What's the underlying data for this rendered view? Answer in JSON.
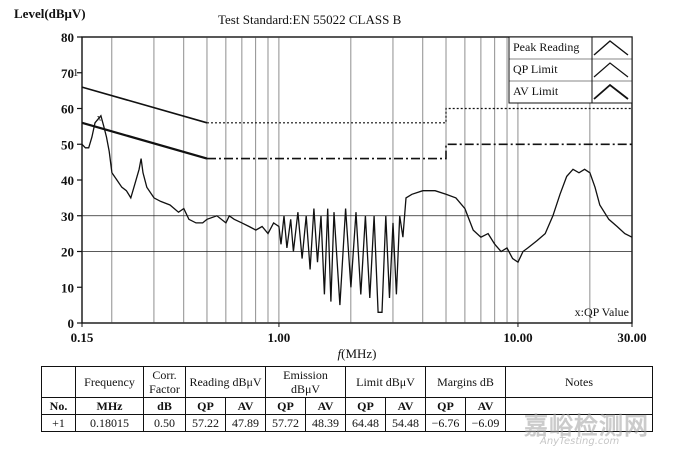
{
  "chart_data": {
    "type": "line",
    "title": "Test Standard:EN 55022 CLASS B",
    "ylabel": "Level(dBμV)",
    "xlabel_prefix": "f",
    "xlabel_unit": "(MHz)",
    "x_scale": "log",
    "xlim": [
      0.15,
      30
    ],
    "ylim": [
      0,
      80
    ],
    "x_ticks": [
      {
        "value": 0.15,
        "label": "0.15"
      },
      {
        "value": 1,
        "label": "1.00"
      },
      {
        "value": 10,
        "label": "10.00"
      },
      {
        "value": 30,
        "label": "30.00"
      }
    ],
    "y_ticks": [
      0,
      10,
      20,
      30,
      40,
      50,
      60,
      70,
      80
    ],
    "grid": true,
    "legend_position": "top-right",
    "annotation": "x:QP Value",
    "marker_label": "1",
    "marker_point": {
      "x": 0.18,
      "y": 57.7
    },
    "series": [
      {
        "name": "Peak Reading",
        "points": [
          [
            0.15,
            50
          ],
          [
            0.155,
            49
          ],
          [
            0.16,
            49
          ],
          [
            0.165,
            52
          ],
          [
            0.17,
            56
          ],
          [
            0.175,
            57
          ],
          [
            0.18,
            58
          ],
          [
            0.185,
            55
          ],
          [
            0.19,
            52
          ],
          [
            0.195,
            48
          ],
          [
            0.2,
            42
          ],
          [
            0.21,
            40
          ],
          [
            0.22,
            38
          ],
          [
            0.23,
            37
          ],
          [
            0.24,
            35
          ],
          [
            0.25,
            39
          ],
          [
            0.26,
            43
          ],
          [
            0.265,
            46
          ],
          [
            0.27,
            42
          ],
          [
            0.28,
            38
          ],
          [
            0.3,
            35
          ],
          [
            0.32,
            34
          ],
          [
            0.35,
            33
          ],
          [
            0.38,
            31
          ],
          [
            0.4,
            32
          ],
          [
            0.42,
            29
          ],
          [
            0.45,
            28
          ],
          [
            0.48,
            28
          ],
          [
            0.5,
            29
          ],
          [
            0.55,
            30
          ],
          [
            0.6,
            28
          ],
          [
            0.62,
            30
          ],
          [
            0.65,
            29
          ],
          [
            0.7,
            28
          ],
          [
            0.75,
            27
          ],
          [
            0.8,
            26
          ],
          [
            0.85,
            27
          ],
          [
            0.9,
            25
          ],
          [
            0.95,
            28
          ],
          [
            1.0,
            27
          ],
          [
            1.02,
            22
          ],
          [
            1.05,
            30
          ],
          [
            1.08,
            21
          ],
          [
            1.12,
            29
          ],
          [
            1.15,
            20
          ],
          [
            1.2,
            31
          ],
          [
            1.25,
            18
          ],
          [
            1.3,
            30
          ],
          [
            1.35,
            15
          ],
          [
            1.4,
            32
          ],
          [
            1.45,
            17
          ],
          [
            1.5,
            30
          ],
          [
            1.55,
            8
          ],
          [
            1.6,
            32
          ],
          [
            1.65,
            6
          ],
          [
            1.7,
            31
          ],
          [
            1.8,
            5
          ],
          [
            1.9,
            32
          ],
          [
            2.0,
            10
          ],
          [
            2.1,
            31
          ],
          [
            2.2,
            8
          ],
          [
            2.3,
            30
          ],
          [
            2.4,
            7
          ],
          [
            2.5,
            30
          ],
          [
            2.6,
            3
          ],
          [
            2.7,
            3
          ],
          [
            2.8,
            30
          ],
          [
            2.9,
            7
          ],
          [
            3.0,
            28
          ],
          [
            3.1,
            8
          ],
          [
            3.2,
            30
          ],
          [
            3.3,
            24
          ],
          [
            3.4,
            35
          ],
          [
            3.6,
            36
          ],
          [
            4.0,
            37
          ],
          [
            4.5,
            37
          ],
          [
            5.0,
            36
          ],
          [
            5.5,
            35
          ],
          [
            6.0,
            32
          ],
          [
            6.5,
            26
          ],
          [
            7.0,
            24
          ],
          [
            7.5,
            25
          ],
          [
            8.0,
            22
          ],
          [
            8.5,
            20
          ],
          [
            9.0,
            21
          ],
          [
            9.5,
            18
          ],
          [
            10.0,
            17
          ],
          [
            10.5,
            20
          ],
          [
            11.0,
            21
          ],
          [
            12.0,
            23
          ],
          [
            13.0,
            25
          ],
          [
            14.0,
            30
          ],
          [
            15.0,
            36
          ],
          [
            16.0,
            41
          ],
          [
            17.0,
            43
          ],
          [
            18.0,
            42
          ],
          [
            19.0,
            43
          ],
          [
            20.0,
            42
          ],
          [
            21.0,
            38
          ],
          [
            22.0,
            33
          ],
          [
            24.0,
            29
          ],
          [
            26.0,
            27
          ],
          [
            28.0,
            25
          ],
          [
            30.0,
            24
          ]
        ]
      },
      {
        "name": "QP Limit",
        "points": [
          [
            0.15,
            66
          ],
          [
            0.5,
            56
          ],
          [
            5.0,
            56
          ],
          [
            5.0,
            60
          ],
          [
            30.0,
            60
          ]
        ]
      },
      {
        "name": "AV Limit",
        "points": [
          [
            0.15,
            56
          ],
          [
            0.5,
            46
          ],
          [
            5.0,
            46
          ],
          [
            5.0,
            50
          ],
          [
            30.0,
            50
          ]
        ]
      }
    ]
  },
  "table": {
    "header1": [
      "Frequency",
      "Corr. Factor",
      "Reading dBμV",
      "Emission dBμV",
      "Limit dBμV",
      "Margins dB",
      "Notes"
    ],
    "header2": [
      "No.",
      "MHz",
      "dB",
      "QP",
      "AV",
      "QP",
      "AV",
      "QP",
      "AV",
      "QP",
      "AV",
      ""
    ],
    "rows": [
      [
        "+1",
        "0.18015",
        "0.50",
        "57.22",
        "47.89",
        "57.72",
        "48.39",
        "64.48",
        "54.48",
        "−6.76",
        "−6.09",
        ""
      ]
    ]
  },
  "watermark": {
    "main": "嘉峪检测网",
    "sub": "AnyTesting.com"
  }
}
